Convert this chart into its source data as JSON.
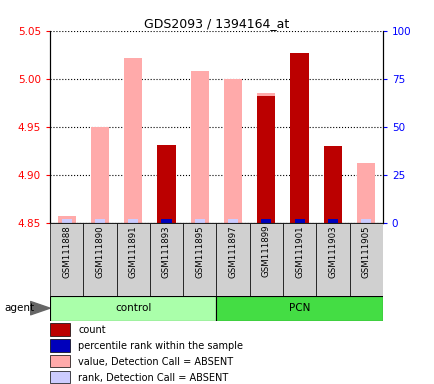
{
  "title": "GDS2093 / 1394164_at",
  "samples": [
    "GSM111888",
    "GSM111890",
    "GSM111891",
    "GSM111893",
    "GSM111895",
    "GSM111897",
    "GSM111899",
    "GSM111901",
    "GSM111903",
    "GSM111905"
  ],
  "groups": [
    "control",
    "control",
    "control",
    "control",
    "control",
    "PCN",
    "PCN",
    "PCN",
    "PCN",
    "PCN"
  ],
  "ylim_left": [
    4.85,
    5.05
  ],
  "ylim_right": [
    0,
    100
  ],
  "yticks_left": [
    4.85,
    4.9,
    4.95,
    5.0,
    5.05
  ],
  "yticks_right": [
    0,
    25,
    50,
    75,
    100
  ],
  "value_absent": [
    4.857,
    4.95,
    5.022,
    null,
    5.008,
    5.0,
    4.985,
    null,
    null,
    4.912
  ],
  "rank_absent_flag": [
    true,
    true,
    true,
    false,
    true,
    true,
    true,
    false,
    false,
    true
  ],
  "count_values": [
    null,
    null,
    null,
    4.931,
    null,
    null,
    4.982,
    5.027,
    4.93,
    null
  ],
  "percentile_present": [
    false,
    false,
    false,
    true,
    false,
    false,
    true,
    true,
    true,
    false
  ],
  "ymin": 4.85,
  "ymax": 5.05,
  "bar_width": 0.55,
  "color_count": "#bb0000",
  "color_percentile": "#0000bb",
  "color_value_absent": "#ffaaaa",
  "color_rank_absent": "#ccccff",
  "legend_items": [
    {
      "color": "#bb0000",
      "label": "count"
    },
    {
      "color": "#0000bb",
      "label": "percentile rank within the sample"
    },
    {
      "color": "#ffaaaa",
      "label": "value, Detection Call = ABSENT"
    },
    {
      "color": "#ccccff",
      "label": "rank, Detection Call = ABSENT"
    }
  ]
}
